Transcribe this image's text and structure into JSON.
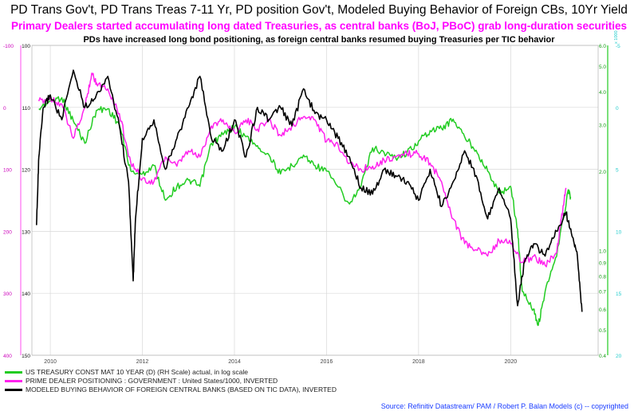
{
  "titles": {
    "line1": "PD Trans Gov't, PD Trans Treas 7-11 Yr, PD position Gov't, Modeled Buying Behavior of Foreign CBs, 10Yr Yield",
    "line2": "Primary Dealers started accumulating long dated Treasuries, as central banks (BoJ, PBoC) grab long-duration securities",
    "line3": "PDs have increased long bond positioning, as foreign central banks resumed buying Treasuries per TIC behavior"
  },
  "source": "Source: Refinitiv Datastream/  PAM / Robert P. Balan Models (c) -- copyrighted",
  "colors": {
    "green": "#22cc22",
    "magenta": "#ff22ee",
    "black": "#000000",
    "cyan_axis": "#22cccc",
    "grid": "#d8d8d8"
  },
  "chart_data": {
    "type": "line",
    "x_ticks": [
      "2010",
      "2012",
      "2014",
      "2016",
      "2018",
      "2020"
    ],
    "x_range": [
      2009.6,
      2021.9
    ],
    "axes": {
      "left_magenta": {
        "ticks": [
          "-100",
          "0",
          "100",
          "200",
          "300",
          "400"
        ],
        "range": [
          -100,
          400
        ]
      },
      "left_black": {
        "ticks": [
          "100",
          "110",
          "120",
          "130",
          "140",
          "150"
        ],
        "range": [
          100,
          150
        ]
      },
      "right_green": {
        "ticks": [
          "6.0",
          "5.0",
          "4.0",
          "3.0",
          "2.0",
          "1.0",
          "0.9",
          "0.8",
          "0.7",
          "0.6",
          "0.5",
          "0.4"
        ],
        "scale": "log",
        "range": [
          0.4,
          6.0
        ]
      },
      "right_cyan": {
        "unit_label": "x 1000",
        "ticks": [
          "-5",
          "0",
          "5",
          "10",
          "15",
          "20"
        ],
        "range": [
          -5,
          20
        ]
      }
    },
    "series": [
      {
        "name": "US TREASURY CONST MAT 10 YEAR (D) (RH Scale) actual, in log scale",
        "color": "#22cc22",
        "axis": "right_green",
        "points": [
          [
            2009.75,
            3.45
          ],
          [
            2010.0,
            3.7
          ],
          [
            2010.25,
            3.8
          ],
          [
            2010.5,
            3.1
          ],
          [
            2010.75,
            2.55
          ],
          [
            2011.0,
            3.4
          ],
          [
            2011.25,
            3.45
          ],
          [
            2011.5,
            3.0
          ],
          [
            2011.75,
            2.0
          ],
          [
            2012.0,
            1.95
          ],
          [
            2012.25,
            2.1
          ],
          [
            2012.5,
            1.55
          ],
          [
            2012.75,
            1.75
          ],
          [
            2013.0,
            1.85
          ],
          [
            2013.25,
            1.75
          ],
          [
            2013.5,
            2.55
          ],
          [
            2013.75,
            2.75
          ],
          [
            2014.0,
            2.95
          ],
          [
            2014.25,
            2.7
          ],
          [
            2014.5,
            2.5
          ],
          [
            2014.75,
            2.3
          ],
          [
            2015.0,
            1.95
          ],
          [
            2015.25,
            2.1
          ],
          [
            2015.5,
            2.3
          ],
          [
            2015.75,
            2.1
          ],
          [
            2016.0,
            2.0
          ],
          [
            2016.5,
            1.5
          ],
          [
            2016.75,
            1.75
          ],
          [
            2017.0,
            2.45
          ],
          [
            2017.25,
            2.35
          ],
          [
            2017.5,
            2.25
          ],
          [
            2017.75,
            2.35
          ],
          [
            2018.0,
            2.6
          ],
          [
            2018.25,
            2.85
          ],
          [
            2018.5,
            2.9
          ],
          [
            2018.75,
            3.15
          ],
          [
            2019.0,
            2.7
          ],
          [
            2019.25,
            2.4
          ],
          [
            2019.5,
            2.0
          ],
          [
            2019.75,
            1.65
          ],
          [
            2020.0,
            1.75
          ],
          [
            2020.15,
            1.2
          ],
          [
            2020.25,
            0.7
          ],
          [
            2020.5,
            0.6
          ],
          [
            2020.6,
            0.52
          ],
          [
            2020.75,
            0.7
          ],
          [
            2021.0,
            0.95
          ],
          [
            2021.25,
            1.7
          ],
          [
            2021.3,
            1.6
          ]
        ]
      },
      {
        "name": "PRIME DEALER POSITIONING : GOVERNMENT : United States/1000, INVERTED",
        "color": "#ff22ee",
        "axis": "left_magenta",
        "points": [
          [
            2009.75,
            -10
          ],
          [
            2010.0,
            -15
          ],
          [
            2010.25,
            -5
          ],
          [
            2010.5,
            50
          ],
          [
            2010.75,
            0
          ],
          [
            2010.9,
            -55
          ],
          [
            2011.0,
            -40
          ],
          [
            2011.25,
            -30
          ],
          [
            2011.5,
            10
          ],
          [
            2011.75,
            90
          ],
          [
            2012.0,
            115
          ],
          [
            2012.25,
            120
          ],
          [
            2012.5,
            80
          ],
          [
            2012.75,
            95
          ],
          [
            2013.0,
            70
          ],
          [
            2013.25,
            80
          ],
          [
            2013.5,
            30
          ],
          [
            2013.75,
            20
          ],
          [
            2014.0,
            40
          ],
          [
            2014.25,
            20
          ],
          [
            2014.5,
            35
          ],
          [
            2014.75,
            20
          ],
          [
            2015.0,
            45
          ],
          [
            2015.25,
            30
          ],
          [
            2015.5,
            15
          ],
          [
            2015.75,
            20
          ],
          [
            2016.0,
            55
          ],
          [
            2016.25,
            60
          ],
          [
            2016.5,
            90
          ],
          [
            2016.75,
            100
          ],
          [
            2017.0,
            95
          ],
          [
            2017.25,
            85
          ],
          [
            2017.5,
            80
          ],
          [
            2017.75,
            75
          ],
          [
            2018.0,
            75
          ],
          [
            2018.25,
            90
          ],
          [
            2018.5,
            120
          ],
          [
            2018.75,
            180
          ],
          [
            2019.0,
            220
          ],
          [
            2019.25,
            230
          ],
          [
            2019.5,
            240
          ],
          [
            2019.75,
            215
          ],
          [
            2020.0,
            220
          ],
          [
            2020.25,
            250
          ],
          [
            2020.5,
            240
          ],
          [
            2020.75,
            255
          ],
          [
            2021.0,
            235
          ],
          [
            2021.1,
            180
          ],
          [
            2021.2,
            130
          ]
        ]
      },
      {
        "name": "MODELED BUYING BEHAVIOR OF FOREIGN CENTRAL BANKS (BASED ON TIC DATA), INVERTED",
        "color": "#000000",
        "axis": "left_black",
        "points": [
          [
            2009.7,
            129
          ],
          [
            2009.75,
            118
          ],
          [
            2009.85,
            110
          ],
          [
            2010.0,
            108
          ],
          [
            2010.25,
            112
          ],
          [
            2010.5,
            104
          ],
          [
            2010.75,
            110
          ],
          [
            2011.0,
            108
          ],
          [
            2011.25,
            105
          ],
          [
            2011.5,
            113
          ],
          [
            2011.7,
            122
          ],
          [
            2011.8,
            138
          ],
          [
            2011.85,
            128
          ],
          [
            2012.0,
            115
          ],
          [
            2012.25,
            112
          ],
          [
            2012.5,
            120
          ],
          [
            2012.75,
            115
          ],
          [
            2013.0,
            110
          ],
          [
            2013.25,
            105
          ],
          [
            2013.5,
            115
          ],
          [
            2013.75,
            117
          ],
          [
            2014.0,
            112
          ],
          [
            2014.25,
            118
          ],
          [
            2014.5,
            110
          ],
          [
            2014.75,
            112
          ],
          [
            2015.0,
            110
          ],
          [
            2015.25,
            113
          ],
          [
            2015.5,
            107
          ],
          [
            2015.75,
            111
          ],
          [
            2016.0,
            112
          ],
          [
            2016.25,
            115
          ],
          [
            2016.5,
            118
          ],
          [
            2016.75,
            123
          ],
          [
            2017.0,
            124
          ],
          [
            2017.25,
            120
          ],
          [
            2017.5,
            121
          ],
          [
            2017.75,
            122
          ],
          [
            2018.0,
            125
          ],
          [
            2018.25,
            120
          ],
          [
            2018.5,
            126
          ],
          [
            2018.75,
            122
          ],
          [
            2019.0,
            117
          ],
          [
            2019.25,
            121
          ],
          [
            2019.5,
            128
          ],
          [
            2019.75,
            123
          ],
          [
            2020.0,
            128
          ],
          [
            2020.15,
            142
          ],
          [
            2020.3,
            135
          ],
          [
            2020.5,
            132
          ],
          [
            2020.75,
            134
          ],
          [
            2021.0,
            130
          ],
          [
            2021.2,
            127
          ],
          [
            2021.35,
            131
          ],
          [
            2021.45,
            134
          ],
          [
            2021.55,
            143
          ]
        ]
      }
    ]
  }
}
